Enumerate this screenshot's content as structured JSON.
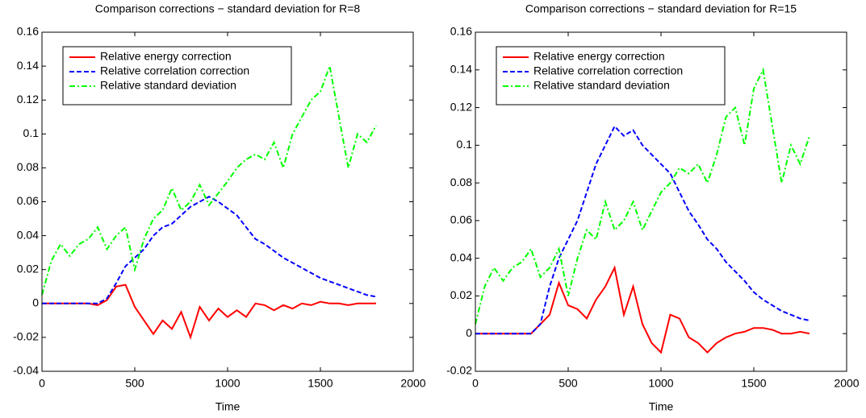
{
  "chart_data": [
    {
      "type": "line",
      "title": "Comparison corrections − standard deviation for R=8",
      "x_label": "Time",
      "x": [
        0,
        50,
        100,
        150,
        200,
        250,
        300,
        350,
        400,
        450,
        500,
        550,
        600,
        650,
        700,
        750,
        800,
        850,
        900,
        950,
        1000,
        1050,
        1100,
        1150,
        1200,
        1250,
        1300,
        1350,
        1400,
        1450,
        1500,
        1550,
        1600,
        1650,
        1700,
        1750,
        1800
      ],
      "series": [
        {
          "name": "Relative energy correction",
          "color": "#ff0000",
          "line_style": "solid",
          "values": [
            0,
            0,
            0,
            0,
            0,
            0,
            -0.001,
            0.002,
            0.01,
            0.011,
            -0.002,
            -0.01,
            -0.018,
            -0.01,
            -0.015,
            -0.005,
            -0.02,
            -0.002,
            -0.01,
            -0.003,
            -0.008,
            -0.004,
            -0.008,
            0,
            -0.001,
            -0.004,
            -0.001,
            -0.003,
            0,
            -0.001,
            0.001,
            0,
            0,
            -0.001,
            0,
            0,
            0
          ]
        },
        {
          "name": "Relative correlation correction",
          "color": "#0000ff",
          "line_style": "dashed",
          "values": [
            0,
            0,
            0,
            0,
            0,
            0,
            0,
            0.003,
            0.012,
            0.022,
            0.027,
            0.032,
            0.04,
            0.045,
            0.047,
            0.052,
            0.057,
            0.06,
            0.063,
            0.06,
            0.056,
            0.052,
            0.045,
            0.038,
            0.035,
            0.031,
            0.027,
            0.024,
            0.021,
            0.018,
            0.015,
            0.013,
            0.011,
            0.009,
            0.007,
            0.005,
            0.004
          ]
        },
        {
          "name": "Relative standard deviation",
          "color": "#00ff00",
          "line_style": "dashdot",
          "values": [
            0.005,
            0.025,
            0.035,
            0.028,
            0.035,
            0.038,
            0.045,
            0.032,
            0.04,
            0.045,
            0.02,
            0.038,
            0.05,
            0.055,
            0.068,
            0.055,
            0.06,
            0.07,
            0.058,
            0.065,
            0.072,
            0.08,
            0.085,
            0.088,
            0.085,
            0.095,
            0.08,
            0.1,
            0.11,
            0.12,
            0.125,
            0.14,
            0.11,
            0.08,
            0.1,
            0.095,
            0.105
          ]
        }
      ],
      "xlim": [
        0,
        2000
      ],
      "xticks": [
        0,
        500,
        1000,
        1500,
        2000
      ],
      "ylim": [
        -0.04,
        0.16
      ],
      "yticks": [
        -0.04,
        -0.02,
        0,
        0.02,
        0.04,
        0.06,
        0.08,
        0.1,
        0.12,
        0.14,
        0.16
      ],
      "grid": false,
      "legend": "upper left"
    },
    {
      "type": "line",
      "title": "Comparison corrections − standard deviation for R=15",
      "x_label": "Time",
      "x": [
        0,
        50,
        100,
        150,
        200,
        250,
        300,
        350,
        400,
        450,
        500,
        550,
        600,
        650,
        700,
        750,
        800,
        850,
        900,
        950,
        1000,
        1050,
        1100,
        1150,
        1200,
        1250,
        1300,
        1350,
        1400,
        1450,
        1500,
        1550,
        1600,
        1650,
        1700,
        1750,
        1800
      ],
      "series": [
        {
          "name": "Relative energy correction",
          "color": "#ff0000",
          "line_style": "solid",
          "values": [
            0,
            0,
            0,
            0,
            0,
            0,
            0,
            0.005,
            0.01,
            0.027,
            0.015,
            0.013,
            0.008,
            0.018,
            0.025,
            0.035,
            0.01,
            0.025,
            0.005,
            -0.005,
            -0.01,
            0.01,
            0.008,
            -0.002,
            -0.005,
            -0.01,
            -0.005,
            -0.002,
            0,
            0.001,
            0.003,
            0.003,
            0.002,
            0,
            0,
            0.001,
            0
          ]
        },
        {
          "name": "Relative correlation correction",
          "color": "#0000ff",
          "line_style": "dashed",
          "values": [
            0,
            0,
            0,
            0,
            0,
            0,
            0,
            0.005,
            0.025,
            0.04,
            0.05,
            0.06,
            0.075,
            0.09,
            0.1,
            0.11,
            0.105,
            0.108,
            0.1,
            0.095,
            0.09,
            0.085,
            0.075,
            0.065,
            0.058,
            0.05,
            0.045,
            0.038,
            0.033,
            0.028,
            0.022,
            0.018,
            0.015,
            0.012,
            0.01,
            0.008,
            0.007
          ]
        },
        {
          "name": "Relative standard deviation",
          "color": "#00ff00",
          "line_style": "dashdot",
          "values": [
            0.005,
            0.025,
            0.035,
            0.028,
            0.035,
            0.038,
            0.045,
            0.03,
            0.035,
            0.045,
            0.02,
            0.04,
            0.055,
            0.05,
            0.07,
            0.055,
            0.06,
            0.07,
            0.055,
            0.065,
            0.075,
            0.08,
            0.088,
            0.085,
            0.09,
            0.08,
            0.095,
            0.115,
            0.12,
            0.1,
            0.13,
            0.14,
            0.11,
            0.08,
            0.1,
            0.09,
            0.105
          ]
        }
      ],
      "xlim": [
        0,
        2000
      ],
      "xticks": [
        0,
        500,
        1000,
        1500,
        2000
      ],
      "ylim": [
        -0.02,
        0.16
      ],
      "yticks": [
        -0.02,
        0,
        0.02,
        0.04,
        0.06,
        0.08,
        0.1,
        0.12,
        0.14,
        0.16
      ],
      "grid": false,
      "legend": "upper left"
    }
  ]
}
